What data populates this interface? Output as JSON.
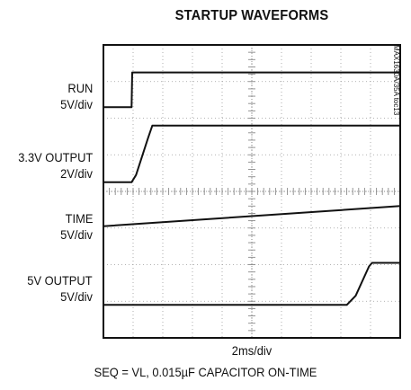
{
  "title": "STARTUP WAVEFORMS",
  "side_code": "MAX1630A/35A toc13",
  "xunit": "2ms/div",
  "footnote": "SEQ = VL, 0.015µF CAPACITOR ON-TIME",
  "channels": [
    {
      "name": "RUN",
      "scale": "5V/div"
    },
    {
      "name": "3.3V OUTPUT",
      "scale": "2V/div"
    },
    {
      "name": "TIME",
      "scale": "5V/div"
    },
    {
      "name": "5V OUTPUT",
      "scale": "5V/div"
    }
  ],
  "chart_data": {
    "type": "line",
    "title": "STARTUP WAVEFORMS",
    "xlabel": "2ms/div",
    "ylabel": "",
    "grid": true,
    "xlim_div": [
      0,
      10
    ],
    "ylim_div": [
      0,
      8
    ],
    "x_unit": "div",
    "y_unit": "div",
    "series": [
      {
        "name": "RUN",
        "points": [
          [
            0,
            6.3
          ],
          [
            0.95,
            6.3
          ],
          [
            0.97,
            7.25
          ],
          [
            10,
            7.25
          ]
        ]
      },
      {
        "name": "3.3V OUTPUT",
        "points": [
          [
            0,
            4.25
          ],
          [
            0.95,
            4.25
          ],
          [
            1.1,
            4.45
          ],
          [
            1.5,
            5.45
          ],
          [
            1.65,
            5.8
          ],
          [
            10,
            5.8
          ]
        ]
      },
      {
        "name": "TIME",
        "points": [
          [
            0,
            3.05
          ],
          [
            10,
            3.6
          ]
        ]
      },
      {
        "name": "5V OUTPUT",
        "points": [
          [
            0,
            0.9
          ],
          [
            8.2,
            0.9
          ],
          [
            8.5,
            1.15
          ],
          [
            8.95,
            1.95
          ],
          [
            9.05,
            2.05
          ],
          [
            10,
            2.05
          ]
        ]
      }
    ]
  }
}
